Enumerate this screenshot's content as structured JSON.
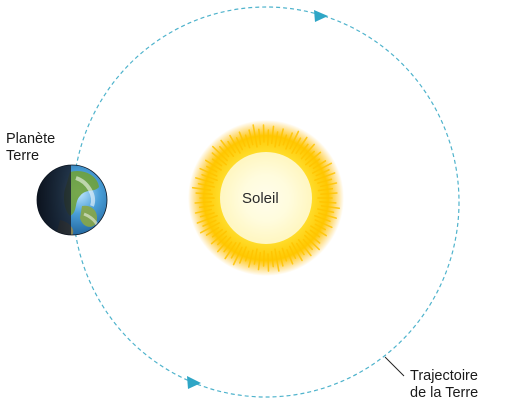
{
  "earth": {
    "label_line1": "Planète",
    "label_line2": "Terre"
  },
  "sun": {
    "label": "Soleil"
  },
  "orbit": {
    "label_line1": "Trajectoire",
    "label_line2": "de la Terre",
    "direction": "counterclockwise"
  },
  "colors": {
    "orbit": "#4fb3cc",
    "arrow": "#2fa6c6",
    "sun_core": "#fffde6",
    "sun_glow": "#ffd21a",
    "sun_edge": "#ffb000"
  }
}
